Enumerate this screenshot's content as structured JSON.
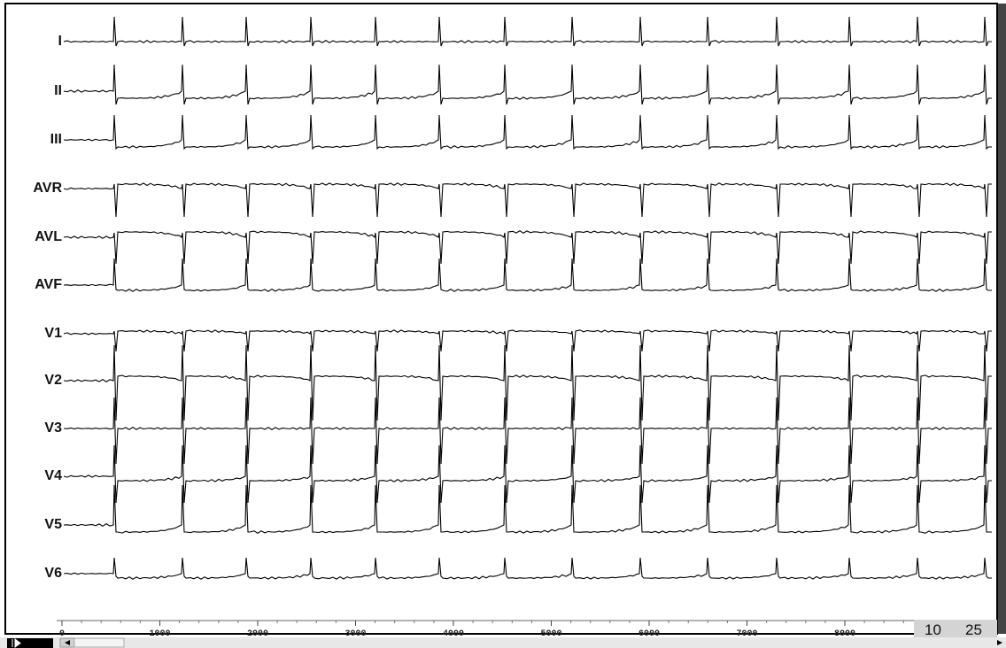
{
  "leads": [
    "I",
    "II",
    "III",
    "AVR",
    "AVL",
    "AVF",
    "V1",
    "V2",
    "V3",
    "V4",
    "V5",
    "V6"
  ],
  "time_axis": {
    "ticks": [
      0,
      1000,
      2000,
      3000,
      4000,
      5000,
      6000,
      7000,
      8000
    ]
  },
  "status": {
    "speed": "10",
    "gain": "25"
  }
}
